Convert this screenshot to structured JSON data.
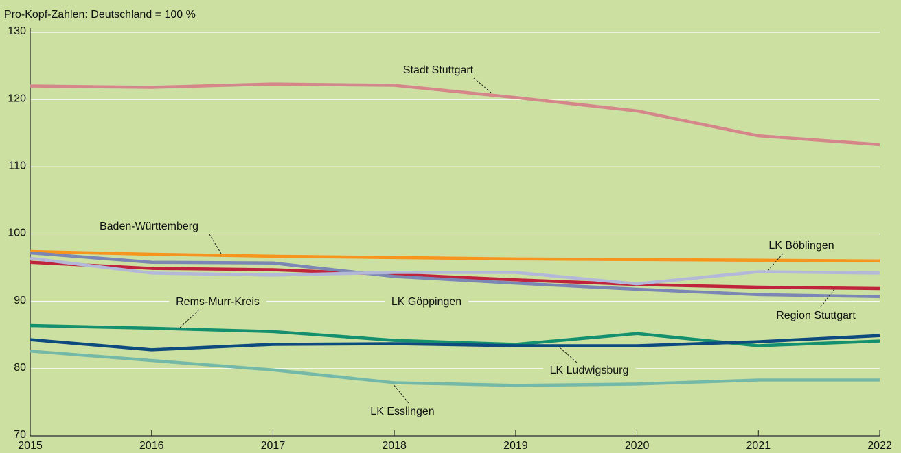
{
  "chart_data": {
    "type": "line",
    "subtitle": "Pro-Kopf-Zahlen: Deutschland = 100 %",
    "x": [
      2015,
      2016,
      2017,
      2018,
      2019,
      2020,
      2021,
      2022
    ],
    "xlim": [
      2015,
      2022
    ],
    "xticks": [
      2015,
      2016,
      2017,
      2018,
      2019,
      2020,
      2021,
      2022
    ],
    "ylim": [
      70,
      130
    ],
    "yticks": [
      70,
      80,
      90,
      100,
      110,
      120,
      130
    ],
    "grid": true,
    "series": [
      {
        "name": "Stadt Stuttgart",
        "color": "#d4868a",
        "values": [
          122.0,
          121.8,
          122.3,
          122.1,
          120.3,
          118.3,
          114.6,
          113.3
        ]
      },
      {
        "name": "Baden-Württemberg",
        "color": "#f7941d",
        "values": [
          97.4,
          97.0,
          96.7,
          96.5,
          96.3,
          96.2,
          96.1,
          96.0
        ]
      },
      {
        "name": "Region Stuttgart",
        "color": "#c0243c",
        "values": [
          95.8,
          94.9,
          94.7,
          94.0,
          93.2,
          92.5,
          92.1,
          91.9
        ]
      },
      {
        "name": "LK Göppingen",
        "color": "#7b86b4",
        "values": [
          97.2,
          95.8,
          95.7,
          93.7,
          92.7,
          91.8,
          91.0,
          90.7
        ]
      },
      {
        "name": "LK Böblingen",
        "color": "#b3b8d9",
        "values": [
          96.4,
          94.2,
          93.9,
          94.3,
          94.3,
          92.6,
          94.4,
          94.2
        ]
      },
      {
        "name": "Rems-Murr-Kreis",
        "color": "#14906e",
        "values": [
          86.4,
          86.0,
          85.5,
          84.2,
          83.6,
          85.2,
          83.4,
          84.1
        ]
      },
      {
        "name": "LK Ludwigsburg",
        "color": "#0d4a7e",
        "values": [
          84.3,
          82.8,
          83.6,
          83.7,
          83.4,
          83.4,
          84.0,
          84.9
        ]
      },
      {
        "name": "LK Esslingen",
        "color": "#74b9a8",
        "values": [
          82.6,
          81.2,
          79.8,
          77.9,
          77.5,
          77.7,
          78.3,
          78.3
        ]
      }
    ]
  }
}
